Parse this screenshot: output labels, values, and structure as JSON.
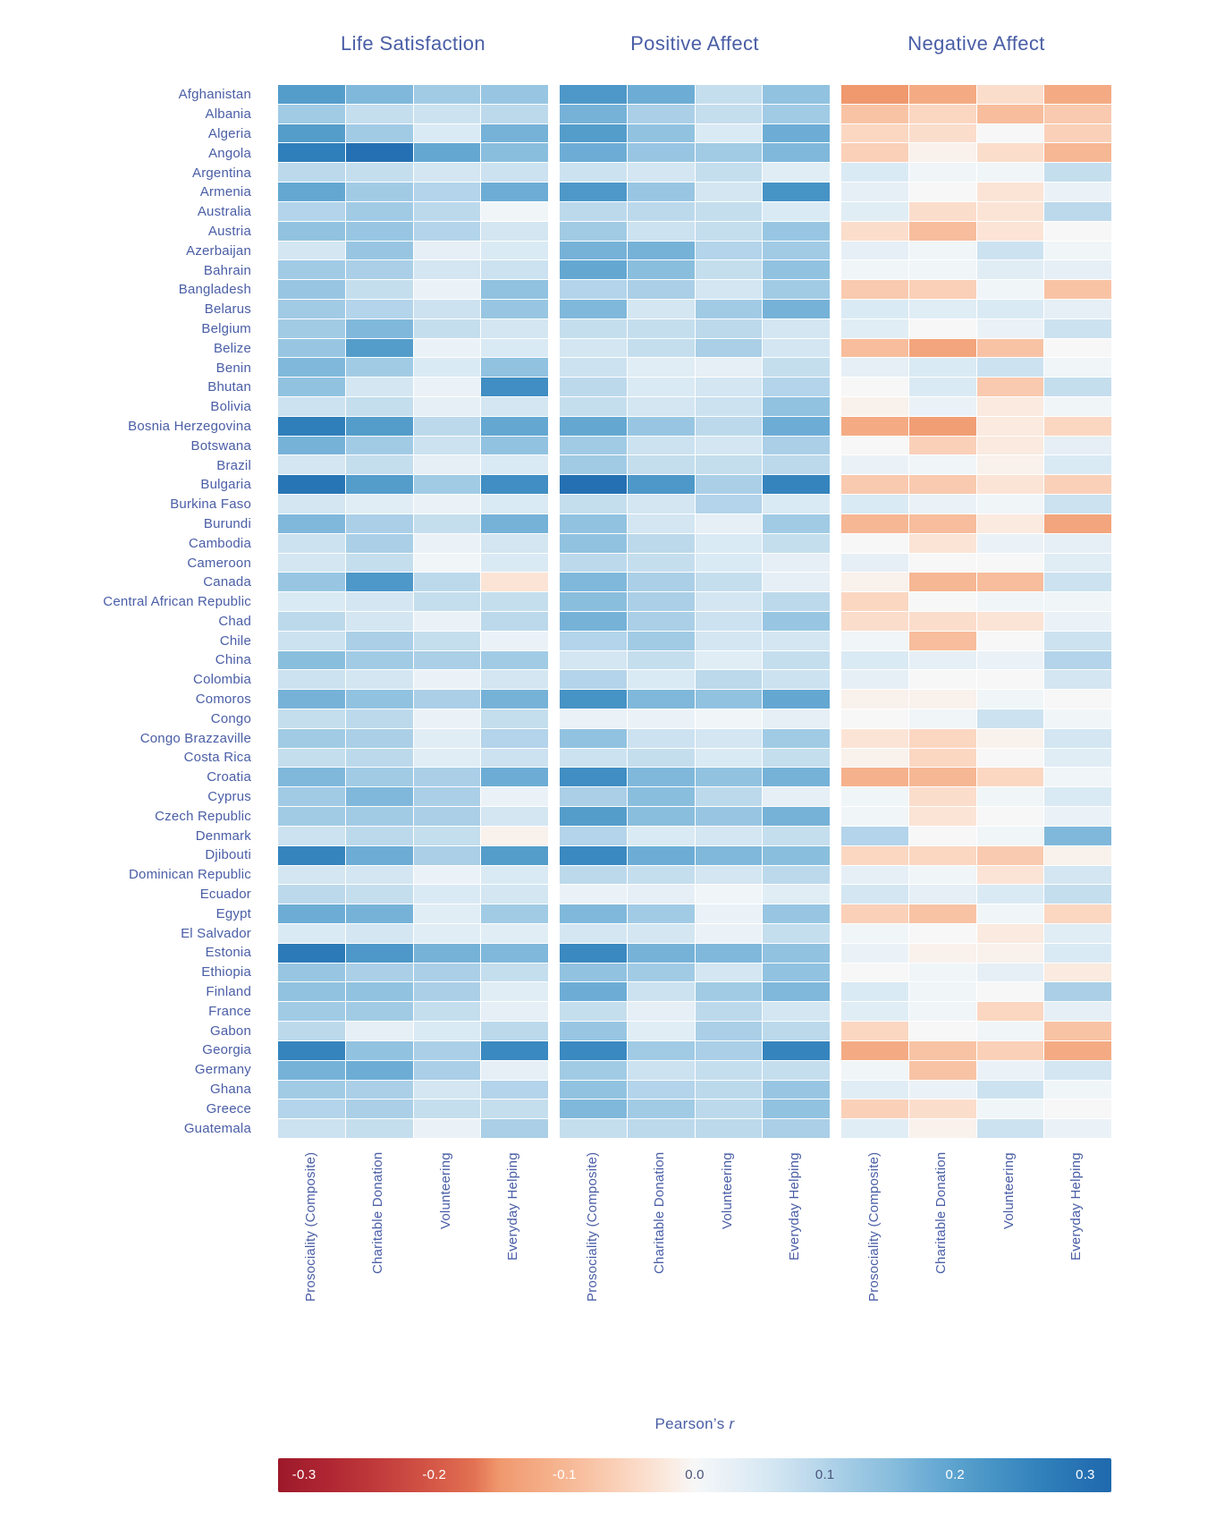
{
  "figure": {
    "value_label_regular": "Pearson’s",
    "value_label_italic": "r",
    "label_color": "#4a5ea6",
    "background_color": "#ffffff"
  },
  "chart_data": {
    "type": "heatmap",
    "panels": [
      "Life Satisfaction",
      "Positive Affect",
      "Negative Affect"
    ],
    "columns": [
      "Prosociality (Composite)",
      "Charitable Donation",
      "Volunteering",
      "Everyday Helping"
    ],
    "countries": [
      "Afghanistan",
      "Albania",
      "Algeria",
      "Angola",
      "Argentina",
      "Armenia",
      "Australia",
      "Austria",
      "Azerbaijan",
      "Bahrain",
      "Bangladesh",
      "Belarus",
      "Belgium",
      "Belize",
      "Benin",
      "Bhutan",
      "Bolivia",
      "Bosnia Herzegovina",
      "Botswana",
      "Brazil",
      "Bulgaria",
      "Burkina Faso",
      "Burundi",
      "Cambodia",
      "Cameroon",
      "Canada",
      "Central African Republic",
      "Chad",
      "Chile",
      "China",
      "Colombia",
      "Comoros",
      "Congo",
      "Congo Brazzaville",
      "Costa Rica",
      "Croatia",
      "Cyprus",
      "Czech Republic",
      "Denmark",
      "Djibouti",
      "Dominican Republic",
      "Ecuador",
      "Egypt",
      "El Salvador",
      "Estonia",
      "Ethiopia",
      "Finland",
      "France",
      "Gabon",
      "Georgia",
      "Germany",
      "Ghana",
      "Greece",
      "Guatemala"
    ],
    "value_label": "Pearson's r",
    "value_range": [
      -0.3,
      0.3
    ],
    "legend_position": "bottom",
    "values": {
      "life_satisfaction": [
        [
          0.21,
          0.16,
          0.12,
          0.13
        ],
        [
          0.12,
          0.08,
          0.07,
          0.09
        ],
        [
          0.21,
          0.12,
          0.05,
          0.17
        ],
        [
          0.27,
          0.3,
          0.19,
          0.15
        ],
        [
          0.09,
          0.08,
          0.06,
          0.07
        ],
        [
          0.19,
          0.12,
          0.1,
          0.18
        ],
        [
          0.1,
          0.12,
          0.09,
          0.01
        ],
        [
          0.14,
          0.13,
          0.1,
          0.06
        ],
        [
          0.06,
          0.13,
          0.03,
          0.05
        ],
        [
          0.12,
          0.11,
          0.06,
          0.07
        ],
        [
          0.13,
          0.08,
          0.02,
          0.14
        ],
        [
          0.12,
          0.1,
          0.07,
          0.13
        ],
        [
          0.12,
          0.16,
          0.08,
          0.06
        ],
        [
          0.13,
          0.21,
          0.02,
          0.05
        ],
        [
          0.16,
          0.12,
          0.05,
          0.14
        ],
        [
          0.14,
          0.06,
          0.02,
          0.24
        ],
        [
          0.07,
          0.08,
          0.03,
          0.06
        ],
        [
          0.27,
          0.21,
          0.09,
          0.19
        ],
        [
          0.17,
          0.12,
          0.07,
          0.14
        ],
        [
          0.06,
          0.08,
          0.03,
          0.05
        ],
        [
          0.29,
          0.21,
          0.12,
          0.24
        ],
        [
          0.06,
          0.04,
          0.02,
          0.05
        ],
        [
          0.16,
          0.11,
          0.08,
          0.17
        ],
        [
          0.07,
          0.11,
          0.02,
          0.06
        ],
        [
          0.06,
          0.08,
          0.01,
          0.05
        ],
        [
          0.13,
          0.22,
          0.09,
          -0.03
        ],
        [
          0.05,
          0.06,
          0.08,
          0.08
        ],
        [
          0.09,
          0.06,
          0.02,
          0.09
        ],
        [
          0.07,
          0.11,
          0.08,
          0.02
        ],
        [
          0.15,
          0.12,
          0.11,
          0.12
        ],
        [
          0.07,
          0.06,
          0.02,
          0.06
        ],
        [
          0.17,
          0.14,
          0.11,
          0.17
        ],
        [
          0.08,
          0.09,
          0.02,
          0.08
        ],
        [
          0.12,
          0.11,
          0.04,
          0.1
        ],
        [
          0.08,
          0.09,
          0.04,
          0.07
        ],
        [
          0.16,
          0.12,
          0.11,
          0.18
        ],
        [
          0.12,
          0.16,
          0.11,
          0.02
        ],
        [
          0.12,
          0.12,
          0.11,
          0.06
        ],
        [
          0.07,
          0.09,
          0.08,
          -0.01
        ],
        [
          0.26,
          0.18,
          0.11,
          0.21
        ],
        [
          0.06,
          0.06,
          0.02,
          0.05
        ],
        [
          0.09,
          0.08,
          0.05,
          0.06
        ],
        [
          0.18,
          0.17,
          0.04,
          0.12
        ],
        [
          0.05,
          0.06,
          0.04,
          0.04
        ],
        [
          0.28,
          0.22,
          0.17,
          0.16
        ],
        [
          0.13,
          0.11,
          0.11,
          0.08
        ],
        [
          0.14,
          0.14,
          0.11,
          0.04
        ],
        [
          0.12,
          0.12,
          0.08,
          0.03
        ],
        [
          0.09,
          0.03,
          0.05,
          0.09
        ],
        [
          0.26,
          0.14,
          0.11,
          0.25
        ],
        [
          0.17,
          0.18,
          0.11,
          0.03
        ],
        [
          0.12,
          0.11,
          0.06,
          0.1
        ],
        [
          0.1,
          0.11,
          0.08,
          0.08
        ],
        [
          0.07,
          0.08,
          0.02,
          0.11
        ]
      ],
      "positive_affect": [
        [
          0.22,
          0.18,
          0.08,
          0.14
        ],
        [
          0.17,
          0.11,
          0.08,
          0.12
        ],
        [
          0.21,
          0.14,
          0.05,
          0.18
        ],
        [
          0.18,
          0.13,
          0.12,
          0.16
        ],
        [
          0.07,
          0.06,
          0.08,
          0.04
        ],
        [
          0.22,
          0.13,
          0.06,
          0.23
        ],
        [
          0.09,
          0.09,
          0.08,
          0.05
        ],
        [
          0.12,
          0.07,
          0.08,
          0.13
        ],
        [
          0.17,
          0.17,
          0.1,
          0.12
        ],
        [
          0.19,
          0.15,
          0.08,
          0.14
        ],
        [
          0.1,
          0.11,
          0.06,
          0.12
        ],
        [
          0.16,
          0.06,
          0.12,
          0.17
        ],
        [
          0.08,
          0.08,
          0.09,
          0.06
        ],
        [
          0.06,
          0.08,
          0.11,
          0.06
        ],
        [
          0.07,
          0.04,
          0.03,
          0.08
        ],
        [
          0.09,
          0.05,
          0.06,
          0.1
        ],
        [
          0.08,
          0.06,
          0.07,
          0.14
        ],
        [
          0.19,
          0.13,
          0.09,
          0.18
        ],
        [
          0.12,
          0.07,
          0.06,
          0.11
        ],
        [
          0.12,
          0.08,
          0.08,
          0.09
        ],
        [
          0.3,
          0.22,
          0.11,
          0.26
        ],
        [
          0.08,
          0.06,
          0.1,
          0.05
        ],
        [
          0.14,
          0.06,
          0.03,
          0.12
        ],
        [
          0.14,
          0.09,
          0.05,
          0.08
        ],
        [
          0.09,
          0.08,
          0.05,
          0.03
        ],
        [
          0.16,
          0.11,
          0.08,
          0.03
        ],
        [
          0.15,
          0.11,
          0.06,
          0.09
        ],
        [
          0.17,
          0.11,
          0.07,
          0.13
        ],
        [
          0.1,
          0.12,
          0.06,
          0.06
        ],
        [
          0.06,
          0.08,
          0.04,
          0.08
        ],
        [
          0.1,
          0.05,
          0.09,
          0.07
        ],
        [
          0.23,
          0.16,
          0.14,
          0.19
        ],
        [
          0.02,
          0.02,
          0.01,
          0.03
        ],
        [
          0.14,
          0.07,
          0.06,
          0.12
        ],
        [
          0.07,
          0.08,
          0.05,
          0.08
        ],
        [
          0.24,
          0.16,
          0.14,
          0.17
        ],
        [
          0.11,
          0.15,
          0.09,
          0.03
        ],
        [
          0.21,
          0.15,
          0.13,
          0.17
        ],
        [
          0.1,
          0.05,
          0.06,
          0.08
        ],
        [
          0.25,
          0.18,
          0.16,
          0.15
        ],
        [
          0.09,
          0.08,
          0.06,
          0.09
        ],
        [
          0.02,
          0.03,
          0.01,
          0.04
        ],
        [
          0.16,
          0.12,
          0.02,
          0.13
        ],
        [
          0.06,
          0.06,
          0.02,
          0.08
        ],
        [
          0.25,
          0.17,
          0.16,
          0.14
        ],
        [
          0.14,
          0.12,
          0.06,
          0.14
        ],
        [
          0.18,
          0.07,
          0.12,
          0.16
        ],
        [
          0.08,
          0.03,
          0.09,
          0.06
        ],
        [
          0.13,
          0.04,
          0.11,
          0.09
        ],
        [
          0.25,
          0.12,
          0.11,
          0.26
        ],
        [
          0.12,
          0.07,
          0.08,
          0.08
        ],
        [
          0.14,
          0.1,
          0.09,
          0.13
        ],
        [
          0.16,
          0.12,
          0.09,
          0.14
        ],
        [
          0.08,
          0.09,
          0.09,
          0.11
        ]
      ],
      "negative_affect": [
        [
          -0.15,
          -0.12,
          -0.04,
          -0.12
        ],
        [
          -0.08,
          -0.05,
          -0.09,
          -0.07
        ],
        [
          -0.05,
          -0.04,
          0.0,
          -0.06
        ],
        [
          -0.06,
          -0.01,
          -0.04,
          -0.1
        ],
        [
          0.05,
          0.01,
          0.01,
          0.08
        ],
        [
          0.03,
          0.0,
          -0.03,
          0.02
        ],
        [
          0.04,
          -0.04,
          -0.03,
          0.09
        ],
        [
          -0.04,
          -0.09,
          -0.03,
          0.0
        ],
        [
          0.03,
          0.01,
          0.07,
          0.01
        ],
        [
          0.01,
          0.01,
          0.04,
          0.03
        ],
        [
          -0.07,
          -0.06,
          0.01,
          -0.08
        ],
        [
          0.05,
          0.04,
          0.05,
          0.03
        ],
        [
          0.04,
          0.0,
          0.02,
          0.07
        ],
        [
          -0.09,
          -0.13,
          -0.08,
          0.0
        ],
        [
          0.03,
          0.05,
          0.07,
          0.01
        ],
        [
          0.0,
          0.05,
          -0.07,
          0.08
        ],
        [
          -0.01,
          0.02,
          -0.02,
          0.01
        ],
        [
          -0.12,
          -0.14,
          -0.02,
          -0.05
        ],
        [
          0.0,
          -0.06,
          -0.02,
          0.03
        ],
        [
          0.02,
          0.01,
          -0.01,
          0.05
        ],
        [
          -0.07,
          -0.07,
          -0.03,
          -0.06
        ],
        [
          0.05,
          0.02,
          0.01,
          0.07
        ],
        [
          -0.1,
          -0.09,
          -0.02,
          -0.13
        ],
        [
          0.0,
          -0.03,
          0.02,
          0.03
        ],
        [
          0.03,
          0.0,
          0.0,
          0.04
        ],
        [
          -0.01,
          -0.1,
          -0.09,
          0.07
        ],
        [
          -0.05,
          0.0,
          0.01,
          0.01
        ],
        [
          -0.04,
          -0.04,
          -0.03,
          0.02
        ],
        [
          0.01,
          -0.09,
          0.0,
          0.07
        ],
        [
          0.05,
          0.03,
          0.02,
          0.1
        ],
        [
          0.03,
          0.0,
          0.0,
          0.06
        ],
        [
          -0.01,
          -0.01,
          0.01,
          0.0
        ],
        [
          0.0,
          0.01,
          0.07,
          0.01
        ],
        [
          -0.03,
          -0.05,
          -0.01,
          0.06
        ],
        [
          -0.01,
          -0.05,
          0.0,
          0.04
        ],
        [
          -0.11,
          -0.1,
          -0.05,
          0.01
        ],
        [
          0.01,
          -0.04,
          0.01,
          0.05
        ],
        [
          0.01,
          -0.03,
          0.0,
          0.02
        ],
        [
          0.1,
          0.0,
          0.01,
          0.16
        ],
        [
          -0.05,
          -0.05,
          -0.07,
          -0.01
        ],
        [
          0.03,
          0.01,
          -0.03,
          0.06
        ],
        [
          0.06,
          0.03,
          0.05,
          0.08
        ],
        [
          -0.06,
          -0.08,
          0.01,
          -0.05
        ],
        [
          0.01,
          0.0,
          -0.02,
          0.04
        ],
        [
          0.02,
          -0.01,
          -0.01,
          0.05
        ],
        [
          0.0,
          0.01,
          0.03,
          -0.02
        ],
        [
          0.05,
          0.01,
          0.0,
          0.11
        ],
        [
          0.04,
          0.01,
          -0.05,
          0.03
        ],
        [
          -0.05,
          0.0,
          0.01,
          -0.08
        ],
        [
          -0.12,
          -0.08,
          -0.06,
          -0.12
        ],
        [
          0.01,
          -0.08,
          0.02,
          0.06
        ],
        [
          0.04,
          0.02,
          0.07,
          0.01
        ],
        [
          -0.06,
          -0.04,
          0.01,
          0.0
        ],
        [
          0.04,
          -0.01,
          0.07,
          0.02
        ]
      ]
    },
    "colorbar": {
      "domain": [
        -0.32,
        0.32
      ],
      "ticks": [
        {
          "label": "-0.3",
          "value": -0.3,
          "dark_text": false
        },
        {
          "label": "-0.2",
          "value": -0.2,
          "dark_text": false
        },
        {
          "label": "-0.1",
          "value": -0.1,
          "dark_text": false
        },
        {
          "label": "0.0",
          "value": 0.0,
          "dark_text": true
        },
        {
          "label": "0.1",
          "value": 0.1,
          "dark_text": true
        },
        {
          "label": "0.2",
          "value": 0.2,
          "dark_text": false
        },
        {
          "label": "0.3",
          "value": 0.3,
          "dark_text": false
        }
      ],
      "tick_light_color": "#ffffff",
      "tick_dark_color": "#4a547a"
    },
    "color_scale": {
      "anchors": [
        [
          -0.32,
          "#9d192a"
        ],
        [
          -0.28,
          "#b02733"
        ],
        [
          -0.24,
          "#c23d3c"
        ],
        [
          -0.2,
          "#d55847"
        ],
        [
          -0.17,
          "#e27152"
        ],
        [
          -0.15,
          "#f0986e"
        ],
        [
          -0.12,
          "#f4ab84"
        ],
        [
          -0.09,
          "#f7bd9c"
        ],
        [
          -0.06,
          "#fad0b8"
        ],
        [
          -0.04,
          "#fbddcc"
        ],
        [
          -0.02,
          "#faeadf"
        ],
        [
          -0.01,
          "#f9f1ec"
        ],
        [
          0.0,
          "#f7f7f7"
        ],
        [
          0.01,
          "#f0f5f8"
        ],
        [
          0.03,
          "#e6eff6"
        ],
        [
          0.05,
          "#daeaf4"
        ],
        [
          0.07,
          "#cce2f0"
        ],
        [
          0.09,
          "#bcd9ec"
        ],
        [
          0.11,
          "#aacfe7"
        ],
        [
          0.13,
          "#98c6e2"
        ],
        [
          0.15,
          "#8abedd"
        ],
        [
          0.17,
          "#76b2d8"
        ],
        [
          0.19,
          "#64a8d2"
        ],
        [
          0.21,
          "#549dcb"
        ],
        [
          0.23,
          "#4693c5"
        ],
        [
          0.25,
          "#3a89c0"
        ],
        [
          0.27,
          "#2f7fba"
        ],
        [
          0.3,
          "#2570b2"
        ],
        [
          0.32,
          "#1f69ad"
        ]
      ]
    }
  }
}
